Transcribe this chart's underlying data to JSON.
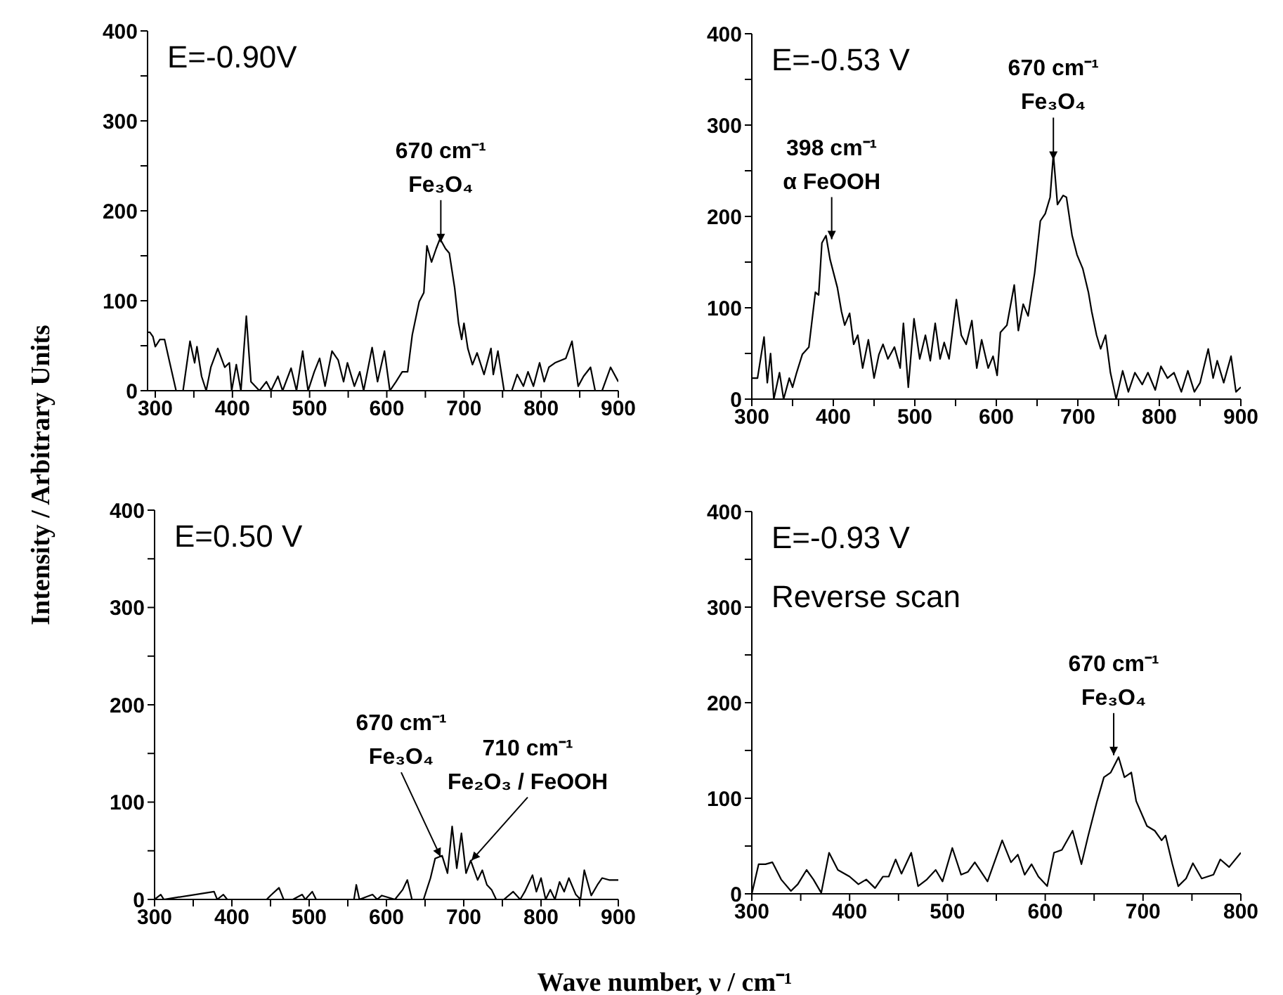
{
  "chart_data": [
    {
      "type": "line",
      "ylabel": "Intensity / Arbitrary Units",
      "color": "#000000",
      "x": [
        290,
        293,
        297,
        300,
        306,
        312,
        318,
        327,
        336,
        345,
        351,
        354,
        360,
        366,
        372,
        381,
        390,
        396,
        399,
        405,
        411,
        418,
        424,
        435,
        444,
        450,
        459,
        465,
        476,
        483,
        491,
        498,
        506,
        513,
        520,
        529,
        537,
        544,
        549,
        558,
        565,
        570,
        581,
        588,
        597,
        604,
        612,
        620,
        627,
        633,
        642,
        648,
        652,
        658,
        664,
        669,
        676,
        681,
        688,
        693,
        697,
        700,
        705,
        711,
        717,
        726,
        735,
        738,
        744,
        752,
        762,
        769,
        777,
        783,
        790,
        798,
        804,
        810,
        818,
        832,
        840,
        848,
        855,
        864,
        870,
        879,
        890,
        900
      ],
      "values": [
        65,
        65,
        60,
        49,
        57,
        57,
        34,
        0,
        0,
        55,
        31,
        49,
        16,
        0,
        26,
        47,
        26,
        31,
        0,
        29,
        0,
        83,
        10,
        0,
        10,
        0,
        16,
        0,
        25,
        0,
        44,
        0,
        21,
        36,
        5,
        44,
        34,
        10,
        31,
        5,
        21,
        0,
        48,
        10,
        44,
        0,
        10,
        21,
        21,
        62,
        99,
        109,
        161,
        143,
        158,
        169,
        158,
        153,
        114,
        75,
        57,
        75,
        47,
        29,
        42,
        18,
        47,
        18,
        44,
        0,
        0,
        18,
        5,
        21,
        5,
        31,
        10,
        26,
        31,
        36,
        55,
        5,
        16,
        26,
        0,
        0,
        26,
        10
      ],
      "xlim": [
        290,
        900
      ],
      "xticks": [
        {
          "value": 300,
          "label": "300"
        },
        {
          "value": 350,
          "label": null
        },
        {
          "value": 400,
          "label": "400"
        },
        {
          "value": 450,
          "label": null
        },
        {
          "value": 500,
          "label": "500"
        },
        {
          "value": 550,
          "label": null
        },
        {
          "value": 600,
          "label": "600"
        },
        {
          "value": 650,
          "label": null
        },
        {
          "value": 700,
          "label": "700"
        },
        {
          "value": 750,
          "label": null
        },
        {
          "value": 800,
          "label": "800"
        },
        {
          "value": 850,
          "label": null
        },
        {
          "value": 900,
          "label": "900"
        }
      ],
      "ylim": [
        0,
        400
      ],
      "yticks": [
        0,
        {
          "value": 50,
          "label": null
        },
        100,
        {
          "value": 150,
          "label": null
        },
        200,
        {
          "value": 250,
          "label": null
        },
        300,
        {
          "value": 350,
          "label": null
        },
        400
      ],
      "annotations": [
        "E=-0.90V",
        {
          "text": "670 cm⁻¹\nFe₃O₄",
          "x": 670,
          "y": 165
        }
      ]
    },
    {
      "type": "line",
      "color": "#000000",
      "x": [
        300,
        307,
        315,
        319,
        323,
        327,
        334,
        339,
        346,
        350,
        355,
        362,
        370,
        378,
        382,
        386,
        391,
        396,
        405,
        410,
        414,
        420,
        425,
        430,
        436,
        443,
        450,
        456,
        461,
        467,
        475,
        482,
        486,
        492,
        499,
        506,
        513,
        519,
        525,
        531,
        536,
        542,
        551,
        557,
        563,
        570,
        576,
        582,
        590,
        596,
        601,
        605,
        613,
        622,
        627,
        633,
        639,
        647,
        654,
        660,
        666,
        670,
        675,
        682,
        686,
        693,
        699,
        706,
        713,
        717,
        723,
        728,
        734,
        740,
        747,
        755,
        762,
        770,
        779,
        786,
        795,
        802,
        810,
        818,
        827,
        835,
        843,
        850,
        860,
        866,
        871,
        879,
        888,
        894,
        900
      ],
      "values": [
        23,
        23,
        68,
        18,
        50,
        0,
        29,
        0,
        23,
        13,
        29,
        49,
        57,
        117,
        114,
        171,
        179,
        153,
        122,
        96,
        81,
        94,
        60,
        70,
        34,
        65,
        23,
        49,
        60,
        44,
        57,
        34,
        83,
        13,
        88,
        44,
        70,
        42,
        83,
        44,
        62,
        44,
        109,
        70,
        60,
        86,
        34,
        65,
        34,
        47,
        26,
        73,
        81,
        125,
        75,
        104,
        91,
        138,
        195,
        203,
        221,
        268,
        213,
        223,
        221,
        179,
        158,
        143,
        117,
        96,
        70,
        55,
        70,
        29,
        0,
        31,
        8,
        29,
        16,
        29,
        10,
        36,
        23,
        29,
        8,
        31,
        8,
        18,
        55,
        23,
        42,
        18,
        47,
        8,
        13
      ],
      "xlim": [
        300,
        900
      ],
      "xticks": [
        300,
        {
          "value": 350,
          "label": null
        },
        400,
        {
          "value": 450,
          "label": null
        },
        500,
        {
          "value": 550,
          "label": null
        },
        600,
        {
          "value": 650,
          "label": null
        },
        700,
        {
          "value": 750,
          "label": null
        },
        800,
        {
          "value": 850,
          "label": null
        },
        900
      ],
      "ylim": [
        0,
        400
      ],
      "yticks": [
        0,
        {
          "value": 50,
          "label": null
        },
        100,
        {
          "value": 150,
          "label": null
        },
        200,
        {
          "value": 250,
          "label": null
        },
        300,
        {
          "value": 350,
          "label": null
        },
        400
      ],
      "annotations": [
        "E=-0.53 V",
        {
          "text": "398 cm⁻¹\nα FeOOH",
          "x": 398,
          "y": 175
        },
        {
          "text": "670 cm⁻¹\nFe₃O₄",
          "x": 670,
          "y": 262
        }
      ]
    },
    {
      "type": "line",
      "color": "#000000",
      "x": [
        300,
        308,
        312,
        377,
        381,
        389,
        394,
        445,
        450,
        461,
        467,
        479,
        491,
        495,
        504,
        509,
        558,
        561,
        565,
        582,
        588,
        594,
        611,
        621,
        627,
        633,
        642,
        648,
        657,
        663,
        672,
        679,
        685,
        691,
        697,
        703,
        709,
        718,
        724,
        730,
        736,
        742,
        752,
        764,
        773,
        779,
        789,
        794,
        800,
        806,
        812,
        818,
        824,
        830,
        836,
        845,
        851,
        856,
        865,
        873,
        879,
        888,
        900
      ],
      "values": [
        0,
        5,
        0,
        8,
        0,
        5,
        0,
        0,
        4,
        12,
        0,
        0,
        5,
        0,
        8,
        0,
        0,
        15,
        0,
        5,
        0,
        4,
        0,
        10,
        20,
        0,
        0,
        0,
        22,
        42,
        45,
        27,
        75,
        32,
        68,
        27,
        40,
        20,
        30,
        15,
        10,
        0,
        0,
        8,
        0,
        8,
        25,
        8,
        22,
        0,
        10,
        0,
        18,
        8,
        22,
        5,
        0,
        30,
        4,
        15,
        22,
        20,
        20
      ],
      "xlim": [
        300,
        900
      ],
      "xticks": [
        300,
        {
          "value": 350,
          "label": null
        },
        400,
        {
          "value": 450,
          "label": null
        },
        500,
        {
          "value": 550,
          "label": null
        },
        600,
        {
          "value": 650,
          "label": null
        },
        700,
        {
          "value": 750,
          "label": null
        },
        800,
        {
          "value": 850,
          "label": null
        },
        900
      ],
      "ylim": [
        0,
        400
      ],
      "yticks": [
        0,
        {
          "value": 50,
          "label": null
        },
        100,
        {
          "value": 150,
          "label": null
        },
        200,
        {
          "value": 250,
          "label": null
        },
        300,
        {
          "value": 350,
          "label": null
        },
        400
      ],
      "annotations": [
        "E=0.50 V",
        {
          "text": "670 cm⁻¹\nFe₃O₄",
          "x": 670,
          "y": 44
        },
        {
          "text": "710 cm⁻¹\nFe₂O₃ / FeOOH",
          "x": 710,
          "y": 40
        }
      ]
    },
    {
      "type": "line",
      "xlabel": "Wave number, ν / cm⁻¹",
      "color": "#000000",
      "x": [
        300,
        307,
        314,
        321,
        330,
        340,
        347,
        356,
        363,
        371,
        379,
        388,
        400,
        409,
        417,
        426,
        434,
        440,
        447,
        453,
        463,
        470,
        479,
        488,
        495,
        505,
        514,
        521,
        528,
        541,
        556,
        565,
        572,
        579,
        586,
        593,
        602,
        609,
        617,
        628,
        637,
        644,
        653,
        660,
        667,
        675,
        681,
        688,
        693,
        704,
        712,
        719,
        723,
        730,
        736,
        744,
        751,
        760,
        772,
        779,
        788,
        800
      ],
      "values": [
        0,
        31,
        31,
        33,
        15,
        3,
        10,
        25,
        15,
        1,
        43,
        25,
        18,
        10,
        15,
        6,
        18,
        18,
        36,
        21,
        43,
        8,
        15,
        25,
        13,
        48,
        20,
        23,
        33,
        13,
        56,
        33,
        41,
        20,
        31,
        18,
        8,
        43,
        46,
        66,
        31,
        61,
        97,
        122,
        127,
        143,
        122,
        127,
        97,
        71,
        66,
        56,
        61,
        31,
        8,
        16,
        32,
        16,
        20,
        36,
        28,
        43
      ],
      "xlim": [
        300,
        800
      ],
      "xticks": [
        300,
        {
          "value": 350,
          "label": null
        },
        400,
        {
          "value": 450,
          "label": null
        },
        500,
        {
          "value": 550,
          "label": null
        },
        600,
        {
          "value": 650,
          "label": null
        },
        700,
        {
          "value": 750,
          "label": null
        },
        800
      ],
      "ylim": [
        0,
        400
      ],
      "yticks": [
        0,
        {
          "value": 50,
          "label": null
        },
        100,
        {
          "value": 150,
          "label": null
        },
        200,
        {
          "value": 250,
          "label": null
        },
        300,
        {
          "value": 350,
          "label": null
        },
        400
      ],
      "annotations": [
        "E=-0.93 V",
        "Reverse scan",
        {
          "text": "670 cm⁻¹\nFe₃O₄",
          "x": 670,
          "y": 145
        }
      ]
    }
  ]
}
